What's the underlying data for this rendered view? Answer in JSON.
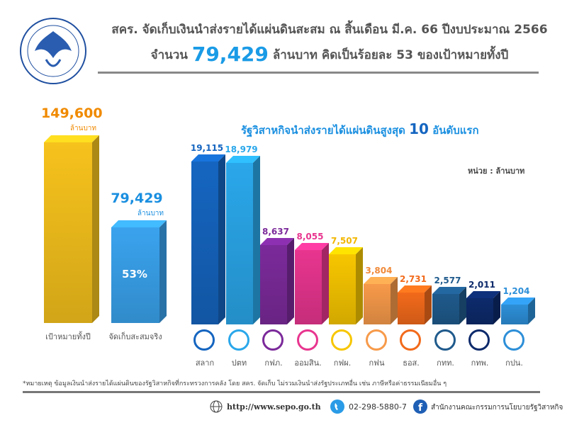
{
  "header": {
    "title_line1": "สคร. จัดเก็บเงินนำส่งรายได้แผ่นดินสะสม ณ สิ้นเดือน มี.ค. 66 ปีงบประมาณ 2566",
    "line2_prefix": "จำนวน",
    "line2_amount": "79,429",
    "line2_suffix": "ล้านบาท คิดเป็นร้อยละ 53 ของเป้าหมายทั้งปี"
  },
  "chart_data": [
    {
      "type": "bar",
      "title": "",
      "categories": [
        "เป้าหมายทั้งปี",
        "จัดเก็บสะสมจริง"
      ],
      "values": [
        149600,
        79429
      ],
      "value_labels": [
        "149,600",
        "79,429"
      ],
      "unit_label": "ล้านบาท",
      "percent_label": "53%",
      "colors": [
        "#f6c21c",
        "#3aa3ee"
      ],
      "label_colors": [
        "#f08a00",
        "#1a8fe0"
      ]
    },
    {
      "type": "bar",
      "title_prefix": "รัฐวิสาหกิจนำส่งรายได้แผ่นดินสูงสุด",
      "title_num": "10",
      "title_suffix": "อันดับแรก",
      "unit": "หน่วย : ล้านบาท",
      "categories": [
        "สลาก",
        "ปตท",
        "กฟภ.",
        "ออมสิน.",
        "กฟผ.",
        "กฟน",
        "ธอส.",
        "กทท.",
        "กทพ.",
        "กปน."
      ],
      "values": [
        19115,
        18979,
        8637,
        8055,
        7507,
        3804,
        2731,
        2577,
        2011,
        1204
      ],
      "value_labels": [
        "19,115",
        "18,979",
        "8,637",
        "8,055",
        "7,507",
        "3,804",
        "2,731",
        "2,577",
        "2,011",
        "1,204"
      ],
      "colors": [
        "#1565c0",
        "#2aa7ea",
        "#7b2a9a",
        "#e8358f",
        "#f7c600",
        "#f79a4a",
        "#f26a1b",
        "#1f5a8c",
        "#0d2a6b",
        "#2d8fd8"
      ],
      "label_colors": [
        "#1565c0",
        "#2aa7ea",
        "#7b2a9a",
        "#e8358f",
        "#f2b600",
        "#f08a3a",
        "#f26a1b",
        "#1f5a8c",
        "#0d2a6b",
        "#2d8fd8"
      ]
    }
  ],
  "footer": {
    "note": "*หมายเหตุ ข้อมูลเงินนำส่งรายได้แผ่นดินของรัฐวิสาหกิจที่กระทรวงการคลัง โดย สคร. จัดเก็บ ไม่รวมเงินนำส่งรัฐประเภทอื่น เช่น ภาษีหรือค่าธรรมเนียมอื่น ๆ",
    "website": "http://www.sepo.go.th",
    "phone": "02-298-5880-7",
    "facebook": "สำนักงานคณะกรรมการนโยบายรัฐวิสาหกิจ"
  }
}
